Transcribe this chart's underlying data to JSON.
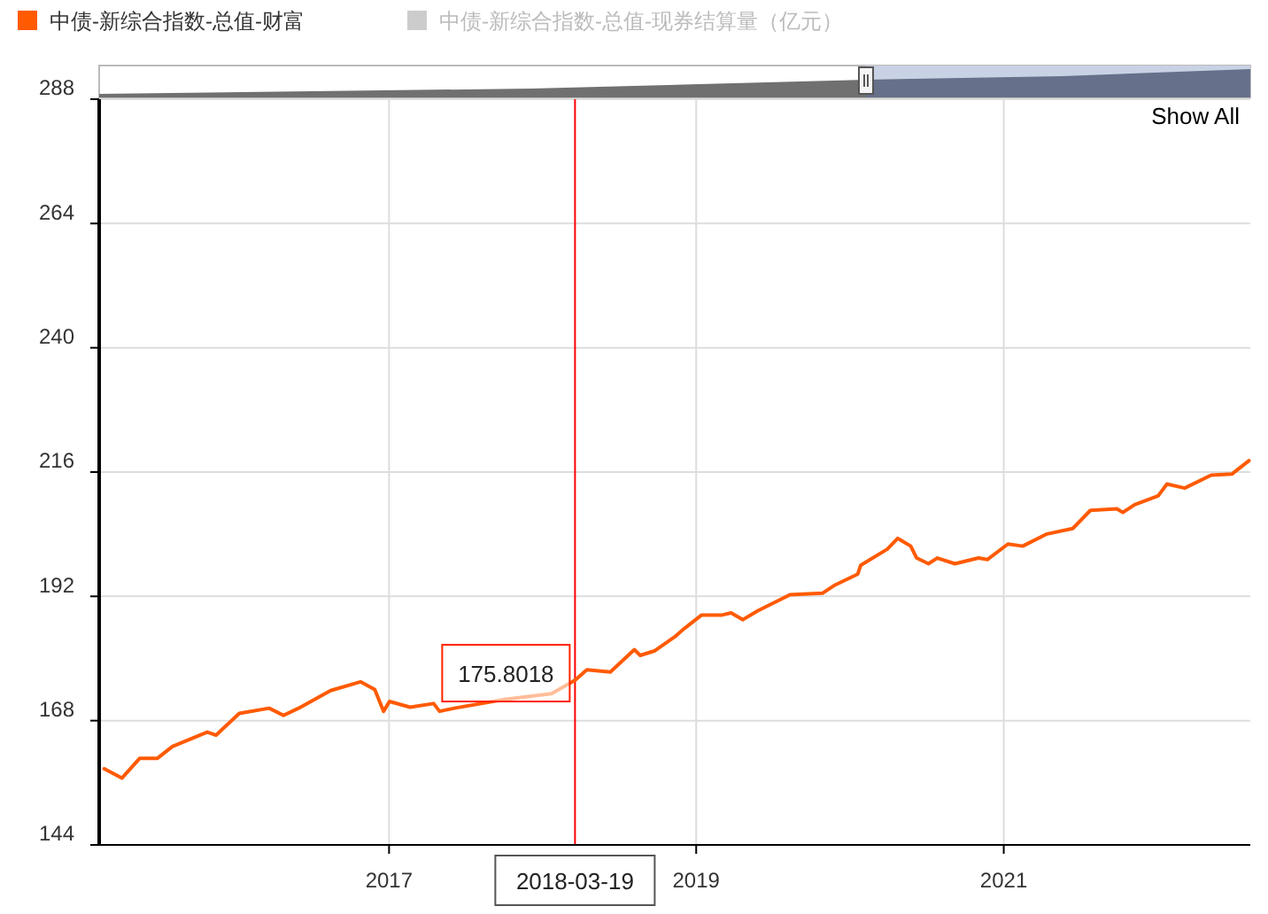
{
  "chart_data": {
    "type": "line",
    "xlim": [
      "2015-02-12",
      "2022-08-10"
    ],
    "xticks": [
      {
        "value": "2017-01-01",
        "label": "2017"
      },
      {
        "value": "2019-01-01",
        "label": "2019"
      },
      {
        "value": "2021-01-01",
        "label": "2021"
      }
    ],
    "ylim": [
      144,
      288
    ],
    "yticks": [
      144,
      168,
      192,
      216,
      240,
      264,
      288
    ],
    "grid": true,
    "legend": "top left",
    "marker": "none",
    "line_style": "solid",
    "series": [
      {
        "name": "中债-新综合指数-总值-财富",
        "color": "#ff5a00",
        "x": [
          "2015-02-24",
          "2015-04-07",
          "2015-05-19",
          "2015-06-30",
          "2015-08-05",
          "2015-10-27",
          "2015-11-17",
          "2016-01-11",
          "2016-03-22",
          "2016-04-25",
          "2016-05-31",
          "2016-08-15",
          "2016-10-25",
          "2016-11-28",
          "2016-12-19",
          "2017-01-02",
          "2017-02-20",
          "2017-04-17",
          "2017-05-01",
          "2017-06-05",
          "2017-10-02",
          "2018-01-22",
          "2018-03-19",
          "2018-04-16",
          "2018-06-11",
          "2018-08-07",
          "2018-08-21",
          "2018-09-25",
          "2018-11-13",
          "2018-12-04",
          "2019-01-14",
          "2019-03-04",
          "2019-03-25",
          "2019-04-22",
          "2019-05-27",
          "2019-08-12",
          "2019-10-28",
          "2019-11-25",
          "2020-01-20",
          "2020-01-27",
          "2020-03-30",
          "2020-04-24",
          "2020-05-25",
          "2020-06-08",
          "2020-07-06",
          "2020-07-27",
          "2020-09-07",
          "2020-11-02",
          "2020-11-23",
          "2021-01-11",
          "2021-02-15",
          "2021-04-12",
          "2021-06-14",
          "2021-07-26",
          "2021-09-27",
          "2021-10-11",
          "2021-11-08",
          "2022-01-03",
          "2022-01-24",
          "2022-03-07",
          "2022-05-09",
          "2022-06-27",
          "2022-08-07"
        ],
        "values": [
          158.7,
          156.9,
          160.7,
          160.7,
          163.0,
          165.8,
          165.2,
          169.4,
          170.4,
          169.0,
          170.4,
          173.8,
          175.5,
          174.0,
          169.8,
          171.7,
          170.6,
          171.3,
          169.8,
          170.4,
          172.1,
          173.2,
          175.8,
          177.8,
          177.4,
          181.7,
          180.6,
          181.5,
          184.3,
          185.8,
          188.4,
          188.4,
          188.8,
          187.5,
          189.2,
          192.3,
          192.6,
          194.1,
          196.3,
          198.0,
          201.1,
          203.2,
          201.7,
          199.4,
          198.3,
          199.4,
          198.3,
          199.4,
          199.1,
          202.1,
          201.7,
          204.0,
          205.1,
          208.6,
          208.9,
          208.2,
          209.7,
          211.4,
          213.7,
          212.9,
          215.4,
          215.6,
          218.2
        ]
      },
      {
        "name": "中债-新综合指数-总值-现券结算量（亿元）",
        "color": "#cccccc"
      }
    ],
    "ref_lines": [
      {
        "axis": "x",
        "value": "2018-03-19",
        "label": "2018-03-19",
        "color": "#ff0000"
      }
    ],
    "annotations": [
      {
        "text": "175.8018",
        "x": "2018-03-19",
        "y": 175.8018
      },
      "Show All"
    ]
  }
}
